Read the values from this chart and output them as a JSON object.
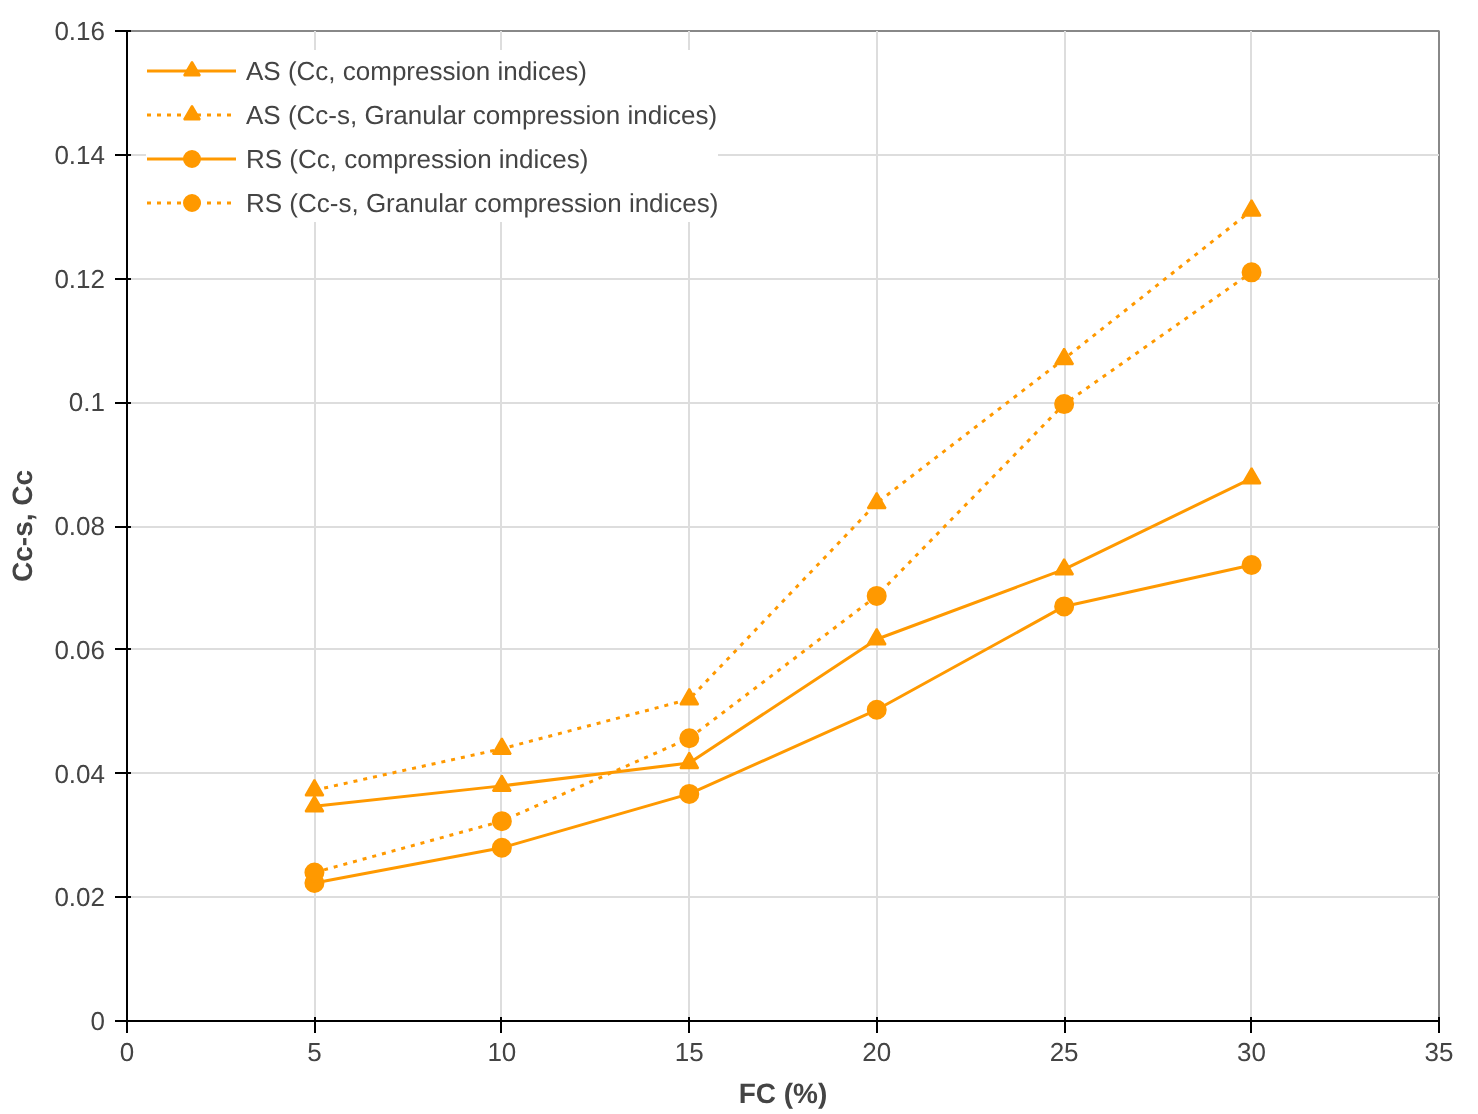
{
  "chart_data": {
    "type": "line",
    "xlabel": "FC (%)",
    "ylabel": "Cc-s, Cc",
    "x": [
      5,
      10,
      15,
      20,
      25,
      30
    ],
    "series": [
      {
        "name": "AS (Cc, compression indices)",
        "color": "#ff9900",
        "marker": "triangle",
        "line_style": "solid",
        "values": [
          0.0347,
          0.038,
          0.0417,
          0.0617,
          0.073,
          0.0877
        ]
      },
      {
        "name": "AS (Cc-s, Granular compression indices)",
        "color": "#ff9900",
        "marker": "triangle",
        "line_style": "dotted",
        "values": [
          0.0373,
          0.044,
          0.052,
          0.0837,
          0.107,
          0.131
        ]
      },
      {
        "name": "RS (Cc, compression indices)",
        "color": "#ff9900",
        "marker": "circle",
        "line_style": "solid",
        "values": [
          0.0223,
          0.028,
          0.0367,
          0.0503,
          0.067,
          0.0737
        ]
      },
      {
        "name": "RS (Cc-s, Granular compression indices)",
        "color": "#ff9900",
        "marker": "circle",
        "line_style": "dotted",
        "values": [
          0.024,
          0.0323,
          0.0457,
          0.0687,
          0.0997,
          0.121
        ]
      }
    ],
    "xlim": [
      0,
      35
    ],
    "xticks": [
      0,
      5,
      10,
      15,
      20,
      25,
      30,
      35
    ],
    "ylim": [
      0,
      0.16
    ],
    "yticks": [
      {
        "value": 0,
        "label": "0"
      },
      {
        "value": 0.02,
        "label": "0.02"
      },
      {
        "value": 0.04,
        "label": "0.04"
      },
      {
        "value": 0.06,
        "label": "0.06"
      },
      {
        "value": 0.08,
        "label": "0.08"
      },
      {
        "value": 0.1,
        "label": "0.1"
      },
      {
        "value": 0.12,
        "label": "0.12"
      },
      {
        "value": 0.14,
        "label": "0.14"
      },
      {
        "value": 0.16,
        "label": "0.16"
      }
    ],
    "grid": true,
    "legend": "top left"
  }
}
